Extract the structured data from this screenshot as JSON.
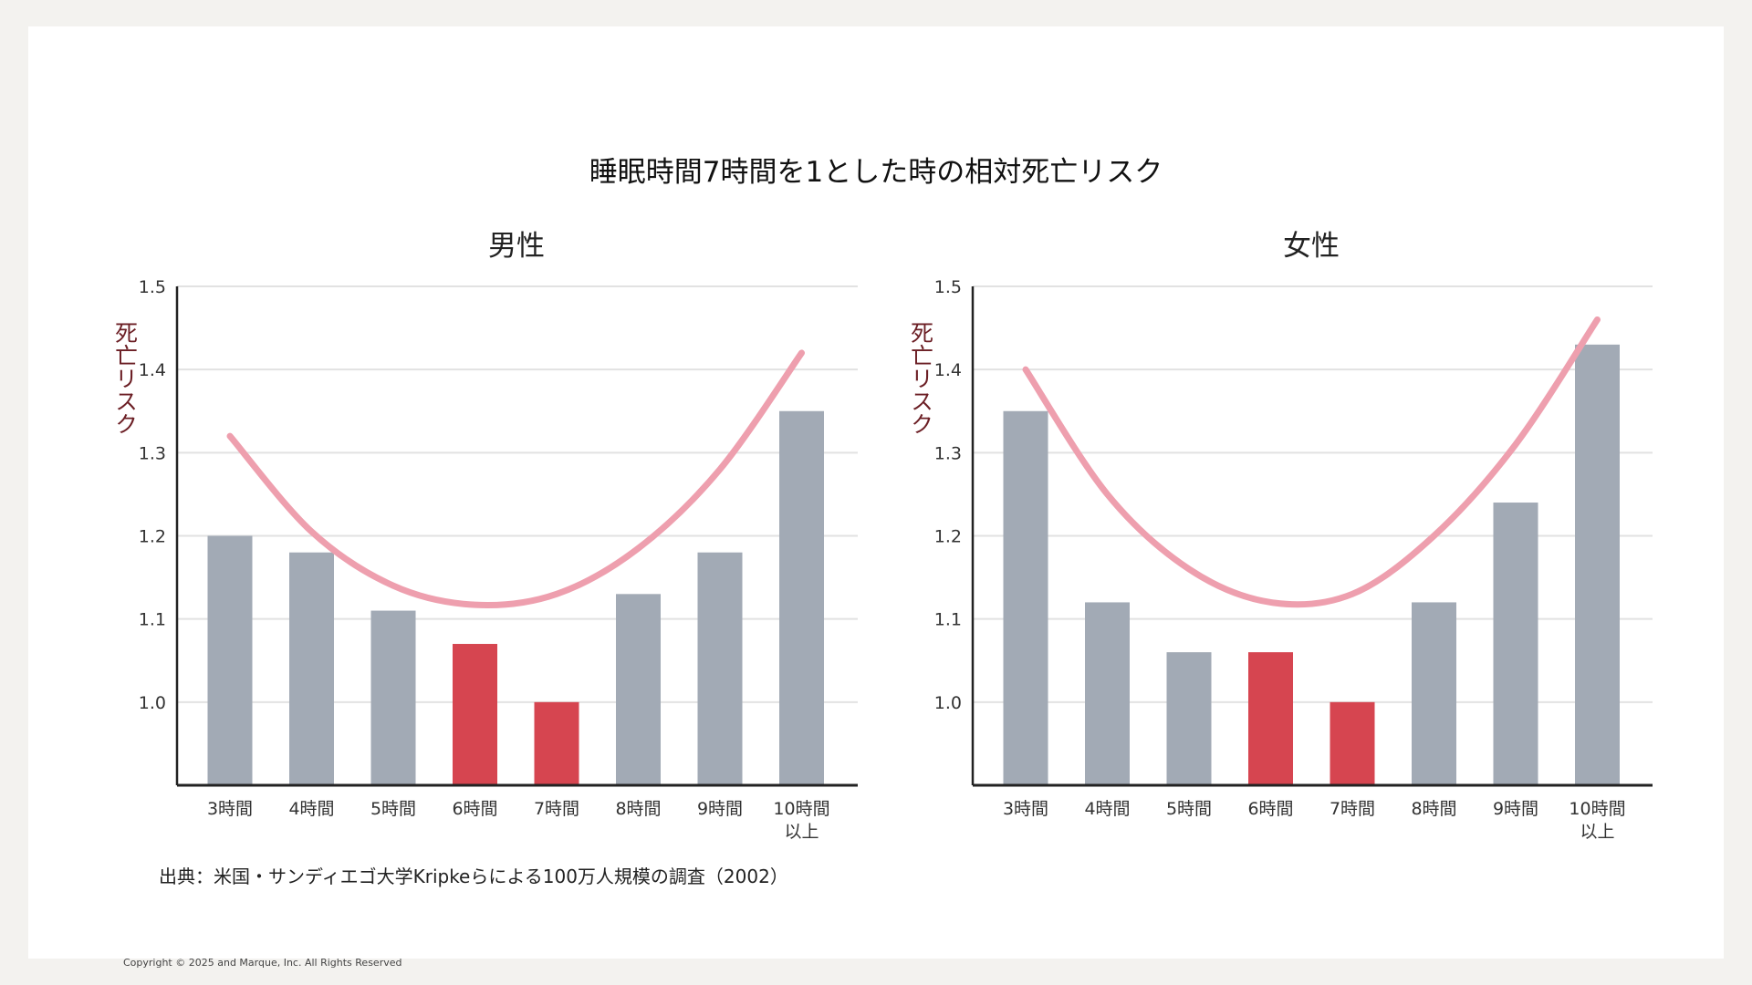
{
  "title": "睡眠時間7時間を1とした時の相対死亡リスク",
  "source": "出典：米国・サンディエゴ大学Kripkeらによる100万人規模の調査（2002）",
  "copyright": "Copyright © 2025 and Marque, Inc. All Rights Reserved",
  "colors": {
    "gray_bar": "#a2aab5",
    "red_bar": "#d64550",
    "curve": "#ee9fae",
    "ylabel": "#6b1e24"
  },
  "chart_data": [
    {
      "type": "bar",
      "title": "男性",
      "ylabel": "死亡リスク",
      "categories": [
        "3時間",
        "4時間",
        "5時間",
        "6時間",
        "7時間",
        "8時間",
        "9時間",
        "10時間 以上"
      ],
      "values": [
        1.2,
        1.18,
        1.11,
        1.07,
        1.0,
        1.13,
        1.18,
        1.35
      ],
      "highlight": [
        false,
        false,
        false,
        true,
        true,
        false,
        false,
        false
      ],
      "yticks": [
        "1.0",
        "1.1",
        "1.2",
        "1.3",
        "1.4",
        "1.5"
      ],
      "ylim": [
        0.9,
        1.5
      ],
      "grid": true,
      "trend_curve": [
        1.32,
        1.205,
        1.14,
        1.117,
        1.13,
        1.185,
        1.28,
        1.42
      ]
    },
    {
      "type": "bar",
      "title": "女性",
      "ylabel": "死亡リスク",
      "categories": [
        "3時間",
        "4時間",
        "5時間",
        "6時間",
        "7時間",
        "8時間",
        "9時間",
        "10時間 以上"
      ],
      "values": [
        1.35,
        1.12,
        1.06,
        1.06,
        1.0,
        1.12,
        1.24,
        1.43
      ],
      "highlight": [
        false,
        false,
        false,
        true,
        true,
        false,
        false,
        false
      ],
      "yticks": [
        "1.0",
        "1.1",
        "1.2",
        "1.3",
        "1.4",
        "1.5"
      ],
      "ylim": [
        0.9,
        1.5
      ],
      "grid": true,
      "trend_curve": [
        1.4,
        1.25,
        1.16,
        1.12,
        1.13,
        1.2,
        1.31,
        1.46
      ]
    }
  ]
}
